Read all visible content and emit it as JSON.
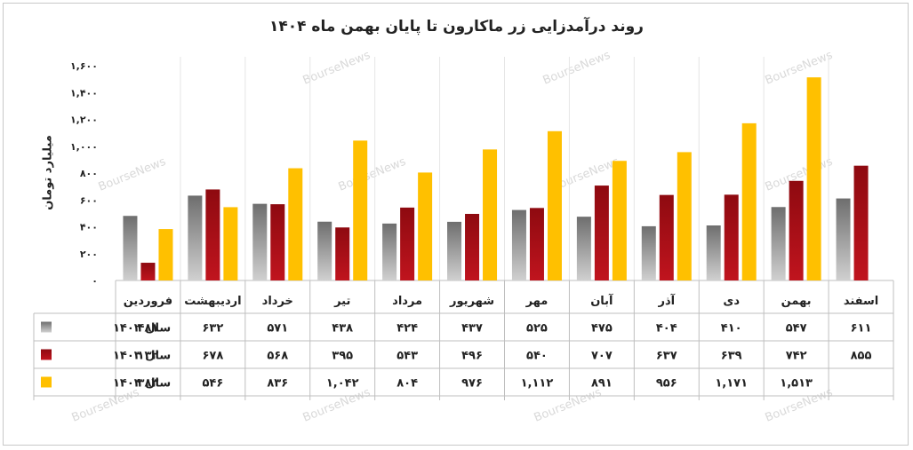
{
  "chart_data": {
    "type": "bar",
    "title": "روند درآمدزایی زر ماکارون تا پایان بهمن ماه  ۱۴۰۴",
    "ylabel": "میلیارد تومان",
    "xlabel": "",
    "ylim": [
      0,
      1600
    ],
    "yticks": [
      0,
      200,
      400,
      600,
      800,
      1000,
      1200,
      1400,
      1600
    ],
    "ytick_labels": [
      "۰",
      "۲۰۰",
      "۴۰۰",
      "۶۰۰",
      "۸۰۰",
      "۱,۰۰۰",
      "۱,۲۰۰",
      "۱,۴۰۰",
      "۱,۶۰۰"
    ],
    "categories": [
      "فروردین",
      "اردیبهشت",
      "خرداد",
      "تیر",
      "مرداد",
      "شهریور",
      "مهر",
      "آبان",
      "آذر",
      "دی",
      "بهمن",
      "اسفند"
    ],
    "series": [
      {
        "name": "سال ۱۴۰۲",
        "color": "#8c8c8c",
        "values": [
          481,
          632,
          571,
          438,
          424,
          437,
          525,
          475,
          404,
          410,
          547,
          611
        ],
        "labels": [
          "۴۸۱",
          "۶۳۲",
          "۵۷۱",
          "۴۳۸",
          "۴۲۴",
          "۴۳۷",
          "۵۲۵",
          "۴۷۵",
          "۴۰۴",
          "۴۱۰",
          "۵۴۷",
          "۶۱۱"
        ]
      },
      {
        "name": "سال ۱۴۰۳",
        "color": "#a80d16",
        "values": [
          132,
          678,
          568,
          395,
          543,
          496,
          540,
          707,
          637,
          639,
          742,
          855
        ],
        "labels": [
          "۱۳۲",
          "۶۷۸",
          "۵۶۸",
          "۳۹۵",
          "۵۴۳",
          "۴۹۶",
          "۵۴۰",
          "۷۰۷",
          "۶۳۷",
          "۶۳۹",
          "۷۴۲",
          "۸۵۵"
        ]
      },
      {
        "name": "سال ۱۴۰۴",
        "color": "#ffc000",
        "values": [
          383,
          546,
          836,
          1042,
          804,
          976,
          1112,
          891,
          956,
          1171,
          1513,
          null
        ],
        "labels": [
          "۳۸۳",
          "۵۴۶",
          "۸۳۶",
          "۱,۰۴۲",
          "۸۰۴",
          "۹۷۶",
          "۱,۱۱۲",
          "۸۹۱",
          "۹۵۶",
          "۱,۱۷۱",
          "۱,۵۱۳",
          ""
        ]
      }
    ],
    "legend": "table-left",
    "grid": false,
    "watermark": "BourseNews"
  }
}
